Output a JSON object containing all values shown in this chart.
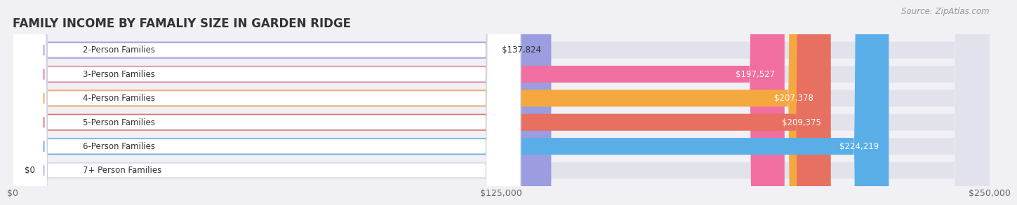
{
  "title": "FAMILY INCOME BY FAMALIY SIZE IN GARDEN RIDGE",
  "source": "Source: ZipAtlas.com",
  "categories": [
    "2-Person Families",
    "3-Person Families",
    "4-Person Families",
    "5-Person Families",
    "6-Person Families",
    "7+ Person Families"
  ],
  "values": [
    137824,
    197527,
    207378,
    209375,
    224219,
    0
  ],
  "bar_colors": [
    "#9b9de0",
    "#f06fa0",
    "#f5a840",
    "#e87060",
    "#5aaee8",
    "#c8aed8"
  ],
  "label_colors": [
    "#333333",
    "#ffffff",
    "#ffffff",
    "#ffffff",
    "#ffffff",
    "#333333"
  ],
  "xlim": [
    0,
    250000
  ],
  "xticks": [
    0,
    125000,
    250000
  ],
  "xtick_labels": [
    "$0",
    "$125,000",
    "$250,000"
  ],
  "background_color": "#f0f0f5",
  "bg_bar_color": "#e2e2ec",
  "title_fontsize": 12,
  "tick_fontsize": 9,
  "label_fontsize": 8.5,
  "source_fontsize": 8.5
}
